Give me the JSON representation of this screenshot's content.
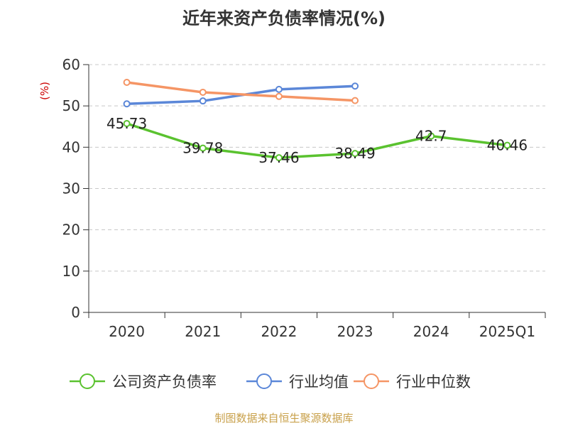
{
  "chart_data": {
    "type": "line",
    "title": "近年来资产负债率情况(%)",
    "ylabel": "(%)",
    "categories": [
      "2020",
      "2021",
      "2022",
      "2023",
      "2024",
      "2025Q1"
    ],
    "ylim": [
      0,
      60
    ],
    "yticks": [
      0,
      10,
      20,
      30,
      40,
      50,
      60
    ],
    "grid": true,
    "legend_position": "bottom",
    "series": [
      {
        "name": "公司资产负债率",
        "color": "#5ac22f",
        "values": [
          45.73,
          39.78,
          37.46,
          38.49,
          42.7,
          40.46
        ],
        "show_labels": true
      },
      {
        "name": "行业均值",
        "color": "#5b87d8",
        "values": [
          50.5,
          51.2,
          54.0,
          54.8,
          null,
          null
        ],
        "show_labels": false
      },
      {
        "name": "行业中位数",
        "color": "#f59565",
        "values": [
          55.7,
          53.3,
          52.3,
          51.3,
          null,
          null
        ],
        "show_labels": false
      }
    ]
  },
  "footer": {
    "source": "制图数据来自恒生聚源数据库"
  }
}
